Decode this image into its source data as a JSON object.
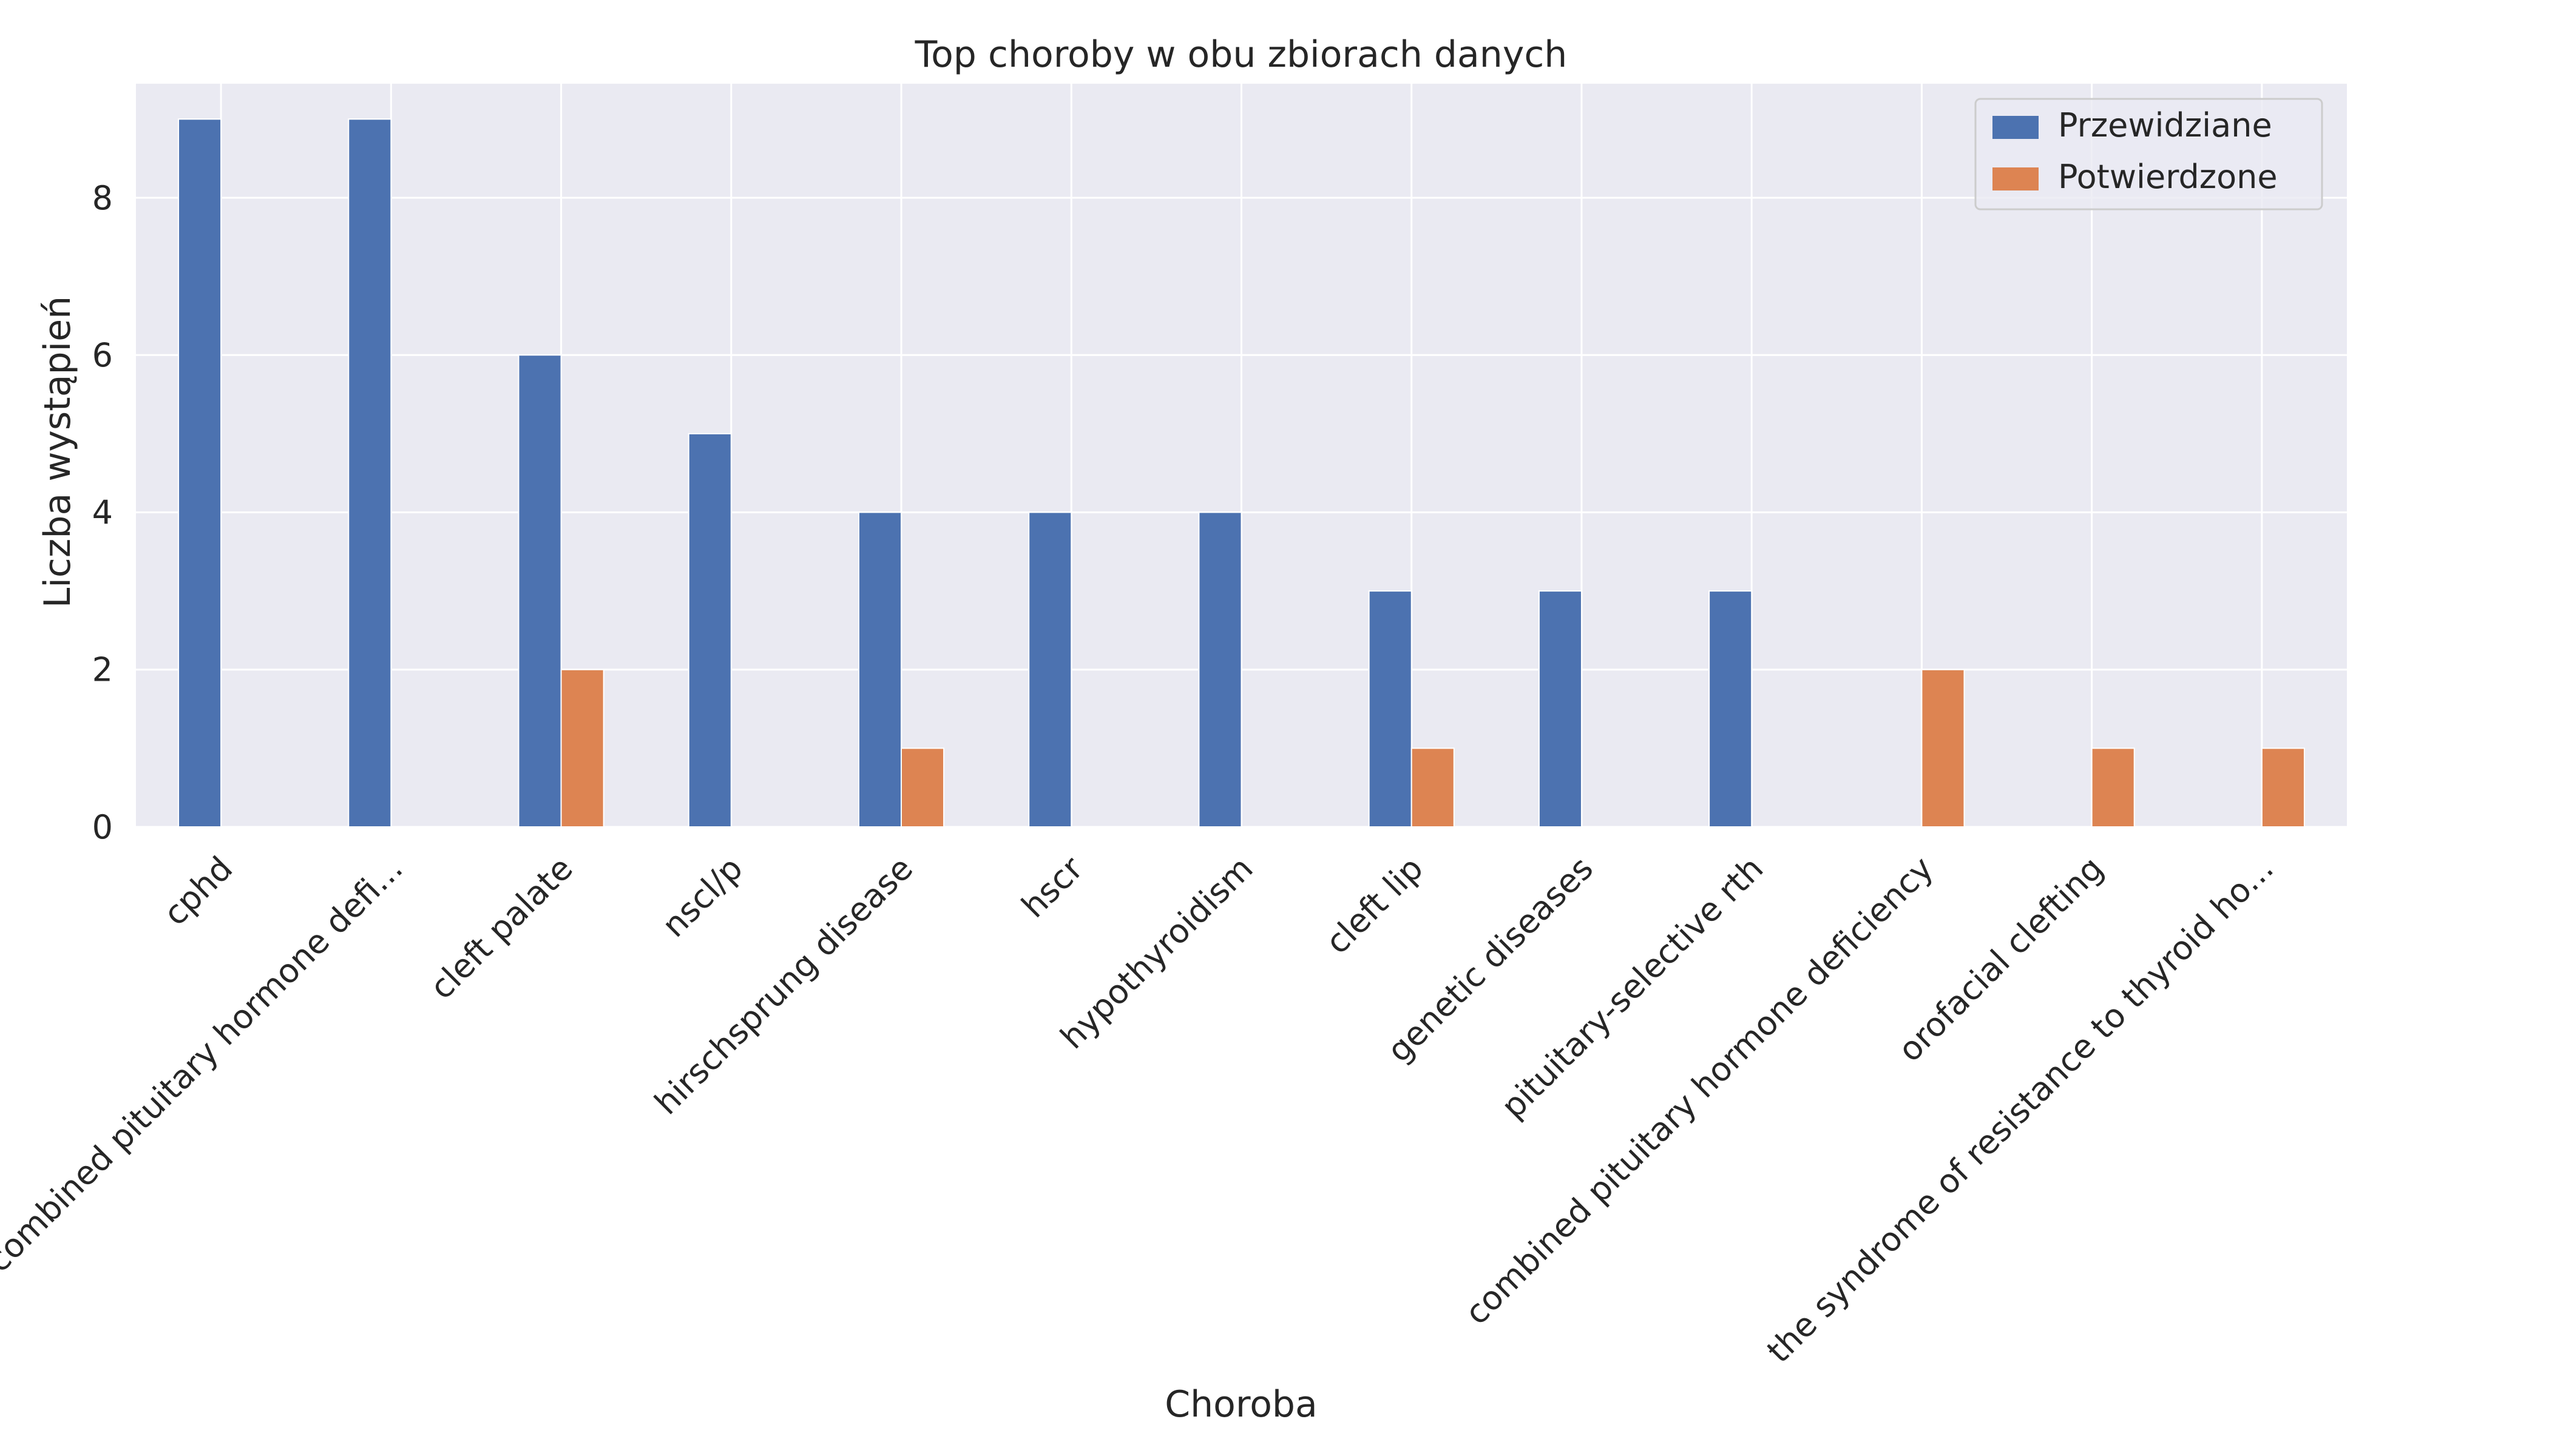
{
  "chart_data": {
    "type": "bar",
    "title": "Top choroby w obu zbiorach danych",
    "xlabel": "Choroba",
    "ylabel": "Liczba wystąpień",
    "categories": [
      "cphd",
      "familial combined pituitary hormone defi...",
      "cleft palate",
      "nscl/p",
      "hirschsprung disease",
      "hscr",
      "hypothyroidism",
      "cleft lip",
      "genetic diseases",
      "pituitary-selective rth",
      "combined pituitary hormone deficiency",
      "orofacial clefting",
      "the syndrome of resistance to thyroid ho..."
    ],
    "series": [
      {
        "name": "Przewidziane",
        "color": "#4c72b0",
        "values": [
          9,
          9,
          6,
          5,
          4,
          4,
          4,
          3,
          3,
          3,
          0,
          0,
          0
        ]
      },
      {
        "name": "Potwierdzone",
        "color": "#dd8452",
        "values": [
          0,
          0,
          2,
          0,
          1,
          0,
          0,
          1,
          0,
          0,
          2,
          1,
          1
        ]
      }
    ],
    "ylim": [
      0,
      9.45
    ],
    "yticks": [
      0,
      2,
      4,
      6,
      8
    ],
    "grid": true,
    "legend_position": "top-right",
    "x_tick_rotation_deg": 45,
    "background_color": "#eaeaf2",
    "grid_color": "#ffffff"
  }
}
